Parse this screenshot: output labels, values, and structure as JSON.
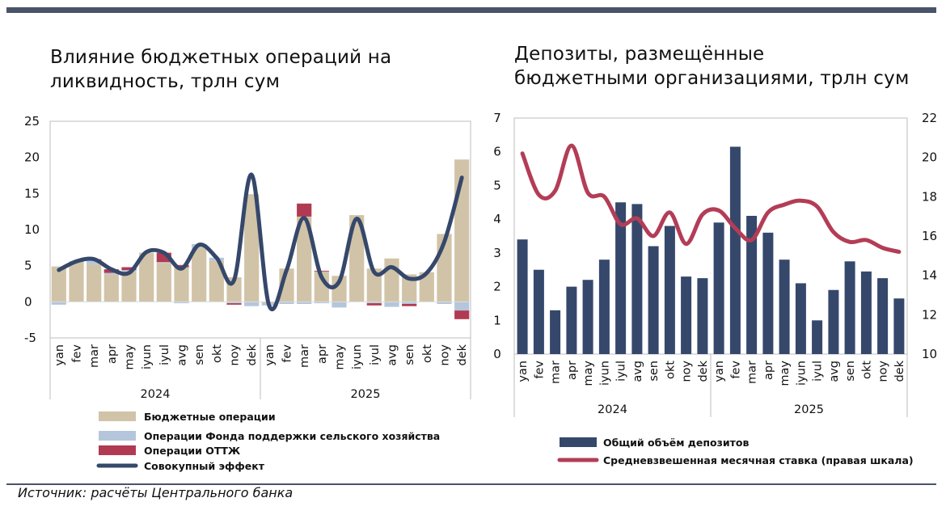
{
  "titles": {
    "left": [
      "Влияние бюджетных операций на",
      "ликвидность, трлн сум"
    ],
    "right": [
      "Депозиты, размещённые",
      "бюджетными организациями, трлн сум"
    ]
  },
  "source": "Источник: расчёты Центрального банка",
  "colors": {
    "budget": "#d1c3a7",
    "fund": "#b4c6dc",
    "ottzh": "#b03a52",
    "total": "#35486b",
    "deposits": "#35486b",
    "rate": "#b33d56",
    "axis": "#c8c8c8"
  },
  "chart_data": [
    {
      "type": "bar",
      "title": "Влияние бюджетных операций на ликвидность, трлн сум",
      "stacked": true,
      "categories": [
        "yan",
        "fev",
        "mar",
        "apr",
        "may",
        "iyun",
        "iyul",
        "avg",
        "sen",
        "okt",
        "noy",
        "dek",
        "yan",
        "fev",
        "mar",
        "apr",
        "may",
        "iyun",
        "iyul",
        "avg",
        "sen",
        "okt",
        "noy",
        "dek"
      ],
      "groups": [
        {
          "label": "2024",
          "from": 0,
          "to": 11
        },
        {
          "label": "2025",
          "from": 12,
          "to": 23
        }
      ],
      "ylim": [
        -5,
        25
      ],
      "yticks": [
        -5,
        0,
        5,
        10,
        15,
        20,
        25
      ],
      "series": [
        {
          "name": "Бюджетные операции",
          "kind": "bar",
          "values": [
            4.9,
            5.6,
            5.2,
            3.8,
            4.2,
            6.8,
            5.4,
            4.8,
            7.5,
            5.7,
            3.4,
            14.9,
            -0.2,
            4.6,
            11.8,
            4.2,
            3.6,
            12.0,
            4.6,
            6.0,
            3.8,
            4.1,
            9.4,
            19.7
          ]
        },
        {
          "name": "Операции Фонда поддержки сельского хозяйства",
          "kind": "bar",
          "values": [
            -0.4,
            0.0,
            0.6,
            0.2,
            0.2,
            0.0,
            0.1,
            -0.2,
            0.5,
            0.4,
            -0.2,
            -0.6,
            -0.3,
            -0.3,
            -0.3,
            -0.2,
            -0.8,
            0.0,
            -0.2,
            -0.7,
            -0.3,
            0.0,
            -0.3,
            -1.2
          ]
        },
        {
          "name": "Операции ОТТЖ",
          "kind": "bar",
          "values": [
            0.0,
            0.0,
            0.1,
            0.5,
            0.4,
            0.0,
            1.3,
            0.3,
            0.0,
            0.0,
            -0.2,
            0.0,
            0.0,
            0.0,
            1.8,
            0.1,
            0.0,
            0.0,
            -0.3,
            0.0,
            -0.3,
            0.0,
            0.0,
            -1.2
          ]
        },
        {
          "name": "Совокупный эффект",
          "kind": "line",
          "values": [
            4.4,
            5.6,
            5.9,
            4.5,
            4.0,
            6.9,
            6.8,
            4.6,
            7.9,
            6.1,
            3.0,
            17.6,
            -0.5,
            4.4,
            11.6,
            3.4,
            2.8,
            11.5,
            4.1,
            4.8,
            3.2,
            4.0,
            8.3,
            17.2
          ]
        }
      ]
    },
    {
      "type": "bar",
      "title": "Депозиты, размещённые бюджетными организациями, трлн сум",
      "categories": [
        "yan",
        "fev",
        "mar",
        "apr",
        "may",
        "iyun",
        "iyul",
        "avg",
        "sen",
        "okt",
        "noy",
        "dek",
        "yan",
        "fev",
        "mar",
        "apr",
        "may",
        "iyun",
        "iyul",
        "avg",
        "sen",
        "okt",
        "noy",
        "dek"
      ],
      "groups": [
        {
          "label": "2024",
          "from": 0,
          "to": 11
        },
        {
          "label": "2025",
          "from": 12,
          "to": 23
        }
      ],
      "ylim": [
        0,
        7
      ],
      "yticks": [
        0,
        1,
        2,
        3,
        4,
        5,
        6,
        7
      ],
      "y2lim": [
        10,
        22
      ],
      "y2ticks": [
        10,
        12,
        14,
        16,
        18,
        20,
        22
      ],
      "series": [
        {
          "name": "Общий объём депозитов",
          "kind": "bar",
          "axis": "left",
          "values": [
            3.4,
            2.5,
            1.3,
            2.0,
            2.2,
            2.8,
            4.5,
            4.45,
            3.2,
            3.8,
            2.3,
            2.25,
            3.9,
            6.15,
            4.1,
            3.6,
            2.8,
            2.1,
            1.0,
            1.9,
            2.75,
            2.45,
            2.25,
            1.65
          ]
        },
        {
          "name": "Средневзвешенная месячная ставка (правая шкала)",
          "kind": "line",
          "axis": "right",
          "values": [
            20.2,
            18.1,
            18.3,
            20.6,
            18.2,
            18.0,
            16.6,
            16.9,
            16.0,
            17.2,
            15.6,
            17.1,
            17.3,
            16.4,
            15.8,
            17.2,
            17.6,
            17.8,
            17.5,
            16.2,
            15.7,
            15.8,
            15.4,
            15.2
          ]
        }
      ]
    }
  ]
}
